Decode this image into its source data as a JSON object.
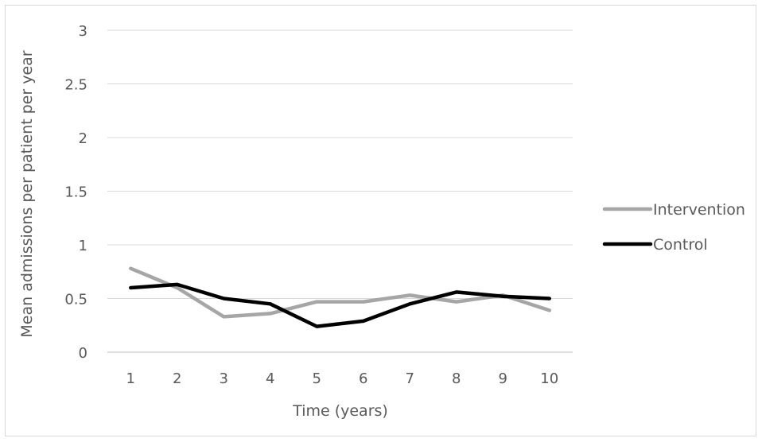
{
  "chart_data": {
    "type": "line",
    "title": "",
    "xlabel": "Time (years)",
    "ylabel": "Mean admissions per patient per year",
    "x": [
      1,
      2,
      3,
      4,
      5,
      6,
      7,
      8,
      9,
      10
    ],
    "x_tick_labels": [
      "1",
      "2",
      "3",
      "4",
      "5",
      "6",
      "7",
      "8",
      "9",
      "10"
    ],
    "ylim": [
      0,
      3
    ],
    "y_ticks": [
      0,
      0.5,
      1,
      1.5,
      2,
      2.5,
      3
    ],
    "y_tick_labels": [
      "0",
      "0.5",
      "1",
      "1.5",
      "2",
      "2.5",
      "3"
    ],
    "grid": "horizontal",
    "legend_position": "right",
    "series": [
      {
        "name": "Intervention",
        "color": "#a6a6a6",
        "values": [
          0.78,
          0.6,
          0.33,
          0.36,
          0.47,
          0.47,
          0.53,
          0.47,
          0.53,
          0.39
        ]
      },
      {
        "name": "Control",
        "color": "#000000",
        "values": [
          0.6,
          0.63,
          0.5,
          0.45,
          0.24,
          0.29,
          0.45,
          0.56,
          0.52,
          0.5
        ]
      }
    ]
  }
}
